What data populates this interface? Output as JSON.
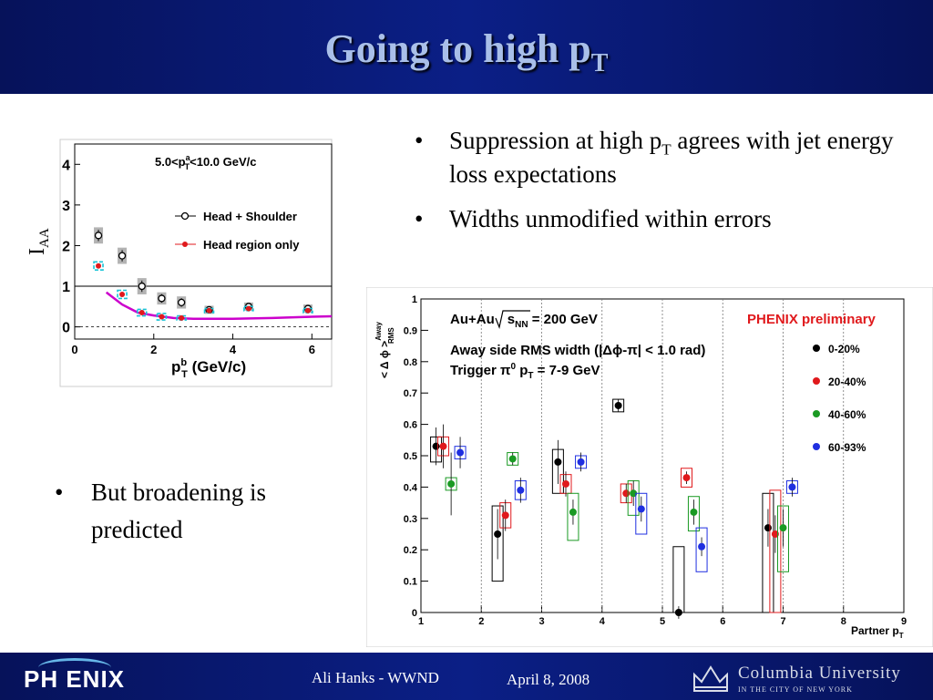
{
  "slide": {
    "title_main": "Going to high p",
    "title_sub": "T",
    "bullets": [
      {
        "pre": "Suppression at high p",
        "sub": "T",
        "post": " agrees with jet energy loss expectations"
      },
      {
        "text": "Widths unmodified within errors"
      }
    ],
    "bullet3": "But broadening is predicted",
    "bullet_glyph": "•"
  },
  "footer": {
    "logo_text": "PH ENIX",
    "author": "Ali Hanks - WWND",
    "date": "April 8, 2008",
    "univ_name": "Columbia University",
    "univ_sub": "IN THE CITY OF NEW YORK",
    "logo_icon": "phoenix-logo",
    "crown_icon": "columbia-crown-icon"
  },
  "colors": {
    "title": "#a9bfe9",
    "band": "#0b1f86",
    "fig2_series": [
      "#000000",
      "#e0191c",
      "#1a9a23",
      "#1f2fe0"
    ]
  },
  "chart_data": [
    {
      "type": "scatter",
      "ylabel_main": "I",
      "ylabel_sub": "AA",
      "xlabel": "p",
      "xlabel_sup": "b",
      "xlabel_sub": "T",
      "xlabel_unit": " (GeV/c)",
      "annotation": "5.0<p",
      "annotation_sup": "a",
      "annotation_sub": "T",
      "annotation_post": "<10.0 GeV/c",
      "xlim": [
        0,
        6.5
      ],
      "ylim": [
        -0.3,
        4.5
      ],
      "xticks": [
        0,
        2,
        4,
        6
      ],
      "yticks": [
        0,
        1,
        2,
        3,
        4
      ],
      "reference_line": 1,
      "series": [
        {
          "name": "Head + Shoulder",
          "marker": "open-circle",
          "x": [
            0.6,
            1.2,
            1.7,
            2.2,
            2.7,
            3.4,
            4.4,
            5.9
          ],
          "y": [
            2.25,
            1.75,
            1.0,
            0.7,
            0.6,
            0.42,
            0.5,
            0.45
          ],
          "err": [
            0.2,
            0.2,
            0.2,
            0.15,
            0.15,
            0.1,
            0.1,
            0.1
          ]
        },
        {
          "name": "Head region only",
          "marker": "filled-circle",
          "color": "#e0191c",
          "x": [
            0.6,
            1.2,
            1.7,
            2.2,
            2.7,
            3.4,
            4.4,
            5.9
          ],
          "y": [
            1.5,
            0.8,
            0.35,
            0.25,
            0.22,
            0.4,
            0.45,
            0.4
          ],
          "err": [
            0.1,
            0.1,
            0.08,
            0.08,
            0.05,
            0.05,
            0.05,
            0.05
          ]
        }
      ],
      "curve": {
        "color": "#cc00cc",
        "x": [
          0.8,
          1.2,
          1.6,
          2.0,
          2.5,
          3.0,
          3.5,
          4.0,
          5.0,
          6.0,
          6.5
        ],
        "y": [
          0.85,
          0.55,
          0.35,
          0.28,
          0.22,
          0.2,
          0.2,
          0.2,
          0.22,
          0.25,
          0.26
        ]
      }
    },
    {
      "type": "scatter",
      "ylabel": "< Δ ϕ >",
      "ylabel_sup": "Away",
      "ylabel_sub": "RMS",
      "xlabel": "Partner p",
      "xlabel_sub": "T",
      "title_lines": [
        {
          "text": "Au+Au",
          "sqrt": "s",
          "sqrt_sub": "NN",
          "post": " = 200 GeV"
        },
        {
          "text": "Away side RMS width (|Δϕ-π| < 1.0 rad)"
        },
        {
          "text": "Trigger π",
          "sup": "0",
          "post": " p",
          "post_sub": "T",
          "post2": " = 7-9 GeV"
        }
      ],
      "label": "PHENIX preliminary",
      "label_color": "#e0191c",
      "xlim": [
        1,
        9
      ],
      "ylim": [
        0,
        1
      ],
      "xticks": [
        1,
        2,
        3,
        4,
        5,
        6,
        7,
        8,
        9
      ],
      "yticks": [
        0,
        0.1,
        0.2,
        0.3,
        0.4,
        0.5,
        0.6,
        0.7,
        0.8,
        0.9,
        1
      ],
      "ytick_labels": [
        "0",
        "0.1",
        "0.2",
        "0.3",
        "0.4",
        "0.5",
        "0.6",
        "0.7",
        "0.8",
        "0.9",
        "1"
      ],
      "dividers": [
        2,
        3,
        4,
        5,
        6,
        7,
        8
      ],
      "series": [
        {
          "name": "0-20%",
          "color": "#000000",
          "x": [
            1.25,
            2.27,
            3.27,
            4.27,
            5.27,
            6.75
          ],
          "y": [
            0.53,
            0.25,
            0.48,
            0.66,
            0.0,
            0.27
          ],
          "err": [
            0.06,
            0.08,
            0.07,
            0.02,
            0.02,
            0.06
          ],
          "box": [
            [
              0.48,
              0.56
            ],
            [
              0.1,
              0.34
            ],
            [
              0.38,
              0.52
            ],
            [
              0.64,
              0.68
            ],
            [
              0.0,
              0.21
            ],
            [
              0.0,
              0.38
            ]
          ]
        },
        {
          "name": "20-40%",
          "color": "#e0191c",
          "x": [
            1.37,
            2.4,
            3.4,
            4.4,
            5.4,
            6.87
          ],
          "y": [
            0.53,
            0.31,
            0.41,
            0.38,
            0.43,
            0.25
          ],
          "err": [
            0.07,
            0.05,
            0.04,
            0.03,
            0.02,
            0.06
          ],
          "box": [
            [
              0.5,
              0.56
            ],
            [
              0.27,
              0.35
            ],
            [
              0.38,
              0.44
            ],
            [
              0.35,
              0.41
            ],
            [
              0.4,
              0.46
            ],
            [
              0.0,
              0.39
            ]
          ]
        },
        {
          "name": "40-60%",
          "color": "#1a9a23",
          "x": [
            1.5,
            2.52,
            3.52,
            4.52,
            5.52,
            7.0
          ],
          "y": [
            0.41,
            0.49,
            0.32,
            0.38,
            0.32,
            0.27
          ],
          "err": [
            0.1,
            0.02,
            0.04,
            0.04,
            0.04,
            0.06
          ],
          "box": [
            [
              0.39,
              0.43
            ],
            [
              0.47,
              0.51
            ],
            [
              0.23,
              0.38
            ],
            [
              0.31,
              0.42
            ],
            [
              0.26,
              0.37
            ],
            [
              0.13,
              0.34
            ]
          ]
        },
        {
          "name": "60-93%",
          "color": "#1f2fe0",
          "x": [
            1.65,
            2.65,
            3.65,
            4.65,
            5.65,
            7.15
          ],
          "y": [
            0.51,
            0.39,
            0.48,
            0.33,
            0.21,
            0.4
          ],
          "err": [
            0.05,
            0.04,
            0.03,
            0.04,
            0.03,
            0.03
          ],
          "box": [
            [
              0.49,
              0.53
            ],
            [
              0.36,
              0.42
            ],
            [
              0.46,
              0.5
            ],
            [
              0.25,
              0.38
            ],
            [
              0.13,
              0.27
            ],
            [
              0.38,
              0.42
            ]
          ]
        }
      ]
    }
  ]
}
